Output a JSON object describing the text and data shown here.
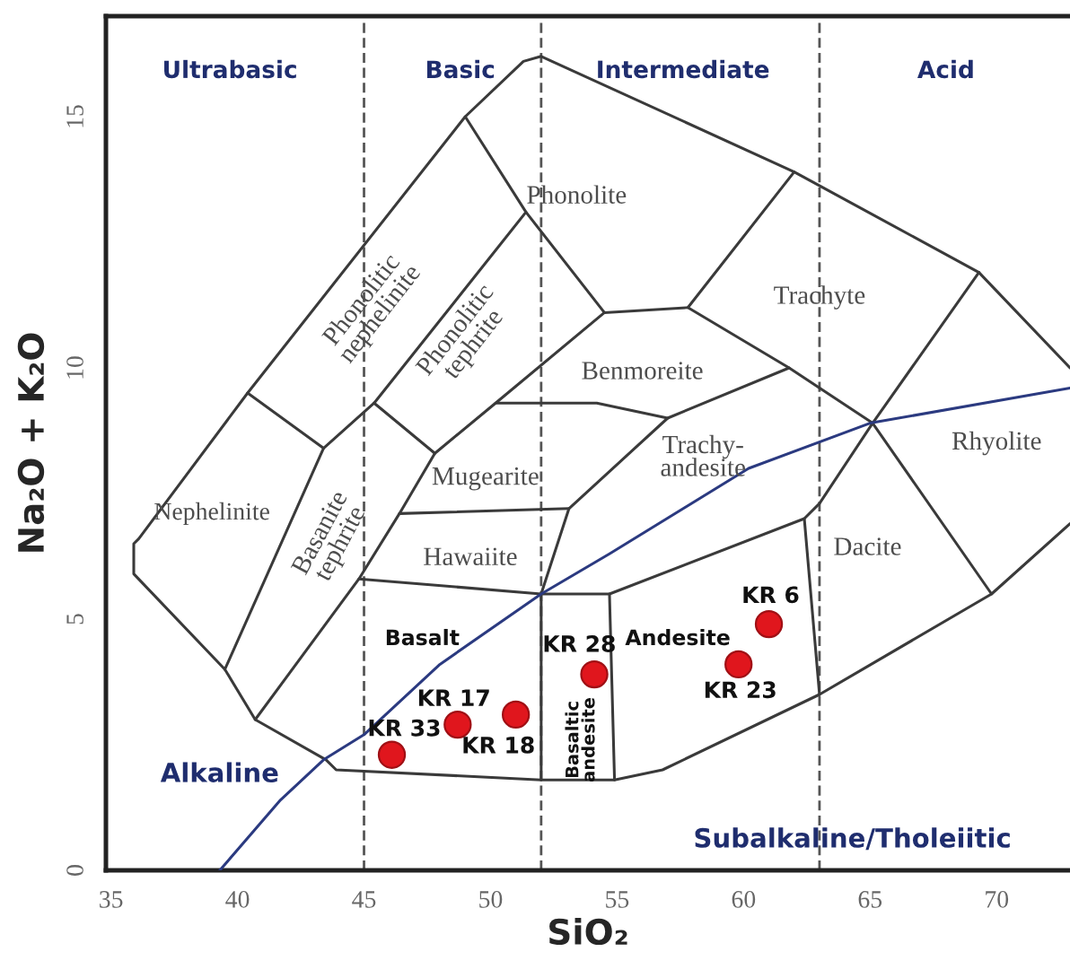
{
  "chart_data": {
    "type": "scatter",
    "xlabel": "SiO₂",
    "ylabel": "Na₂O + K₂O",
    "xlim": [
      34.8,
      72.9
    ],
    "xticks": [
      35,
      40,
      45,
      50,
      55,
      60,
      65,
      70
    ],
    "ylim": [
      0,
      17
    ],
    "yticks": [
      0,
      5,
      10,
      15
    ],
    "ref_lines": [
      {
        "axis": "x",
        "value": 45,
        "color": "#555555",
        "line_style": "dashed"
      },
      {
        "axis": "x",
        "value": 52,
        "color": "#555555",
        "line_style": "dashed"
      },
      {
        "axis": "x",
        "value": 63,
        "color": "#555555",
        "line_style": "dashed"
      }
    ],
    "series": [
      {
        "type": "line",
        "color": "#3a3a3a",
        "x": [
          72.9,
          69.8,
          63.0,
          56.8,
          54.9,
          52.0,
          43.9,
          43.5,
          40.7,
          39.5,
          35.9,
          35.9,
          36.1,
          40.4,
          49.0,
          51.3,
          52.0,
          62.0,
          69.3,
          72.9
        ],
        "values": [
          6.9,
          5.5,
          3.5,
          2.0,
          1.8,
          1.8,
          2.0,
          2.2,
          3.0,
          4.0,
          5.9,
          6.5,
          6.6,
          9.5,
          15.0,
          16.1,
          16.2,
          13.9,
          11.9,
          10.0
        ]
      },
      {
        "type": "line",
        "color": "#3a3a3a",
        "x": [
          40.4,
          43.4,
          39.5
        ],
        "values": [
          9.5,
          8.4,
          4.0
        ]
      },
      {
        "type": "line",
        "color": "#3a3a3a",
        "x": [
          43.4,
          45.4,
          51.4
        ],
        "values": [
          8.4,
          9.3,
          13.1
        ]
      },
      {
        "type": "line",
        "color": "#3a3a3a",
        "x": [
          49.0,
          51.4,
          54.5
        ],
        "values": [
          15.0,
          13.1,
          11.1
        ]
      },
      {
        "type": "line",
        "color": "#3a3a3a",
        "x": [
          45.4,
          47.8,
          50.2,
          54.5
        ],
        "values": [
          9.3,
          8.3,
          9.3,
          11.1
        ]
      },
      {
        "type": "line",
        "color": "#3a3a3a",
        "x": [
          47.8,
          46.4,
          44.8,
          40.7
        ],
        "values": [
          8.3,
          7.1,
          5.8,
          3.0
        ]
      },
      {
        "type": "line",
        "color": "#3a3a3a",
        "x": [
          54.5,
          57.8,
          62.0
        ],
        "values": [
          11.1,
          11.2,
          13.9
        ]
      },
      {
        "type": "line",
        "color": "#3a3a3a",
        "x": [
          57.8,
          61.8,
          65.1,
          69.8
        ],
        "values": [
          11.2,
          10.0,
          8.9,
          5.5
        ]
      },
      {
        "type": "line",
        "color": "#3a3a3a",
        "x": [
          50.2,
          54.2,
          57.0,
          61.8
        ],
        "values": [
          9.3,
          9.3,
          9.0,
          10.0
        ]
      },
      {
        "type": "line",
        "color": "#3a3a3a",
        "x": [
          57.0,
          53.1,
          52.0,
          52.0
        ],
        "values": [
          9.0,
          7.2,
          5.5,
          1.8
        ]
      },
      {
        "type": "line",
        "color": "#3a3a3a",
        "x": [
          46.4,
          53.1
        ],
        "values": [
          7.1,
          7.2
        ]
      },
      {
        "type": "line",
        "color": "#3a3a3a",
        "x": [
          44.8,
          52.0,
          54.7,
          54.9
        ],
        "values": [
          5.8,
          5.5,
          5.5,
          1.8
        ]
      },
      {
        "type": "line",
        "color": "#3a3a3a",
        "x": [
          54.7,
          62.4,
          63.0,
          65.1,
          69.3
        ],
        "values": [
          5.5,
          7.0,
          7.3,
          8.9,
          11.9
        ]
      },
      {
        "type": "line",
        "color": "#3a3a3a",
        "x": [
          62.4,
          63.0
        ],
        "values": [
          7.0,
          3.5
        ]
      },
      {
        "type": "line",
        "color": "#2b3a80",
        "x": [
          39.3,
          41.7,
          43.4,
          45.0,
          48.0,
          52.0,
          54.7,
          60.2,
          65.0,
          72.9
        ],
        "values": [
          0,
          1.4,
          2.2,
          2.7,
          4.1,
          5.5,
          6.3,
          8.0,
          8.9,
          9.6
        ]
      },
      {
        "color": "#e0161d",
        "marker": "circle",
        "x": [
          46.1,
          48.7,
          51.0,
          54.1,
          59.8,
          61.0
        ],
        "values": [
          2.3,
          2.9,
          3.1,
          3.9,
          4.1,
          4.9
        ]
      }
    ],
    "annotations": [
      "Ultrabasic",
      "Basic",
      "Intermediate",
      "Acid",
      "Phonolite",
      "Trachyte",
      "Benmoreite",
      "Phonolitic\nnephelinite",
      "Phonolitic\ntephrite",
      "Mugearite",
      "Trachy-\nandesite",
      "Rhyolite",
      "Nephelinite",
      "Basanite\ntephrite",
      "Hawaiite",
      "Dacite",
      "Basalt",
      "Andesite",
      "Basaltic\nandesite",
      "Alkaline",
      "Subalkaline/Tholeiitic",
      {
        "text": "KR 33",
        "x": 46.1,
        "y": 2.3
      },
      {
        "text": "KR 17",
        "x": 48.7,
        "y": 2.9
      },
      {
        "text": "KR 18",
        "x": 51.0,
        "y": 3.1
      },
      {
        "text": "KR 28",
        "x": 54.1,
        "y": 3.9
      },
      {
        "text": "KR 23",
        "x": 59.8,
        "y": 4.1
      },
      {
        "text": "KR 6",
        "x": 61.0,
        "y": 4.9
      }
    ]
  }
}
